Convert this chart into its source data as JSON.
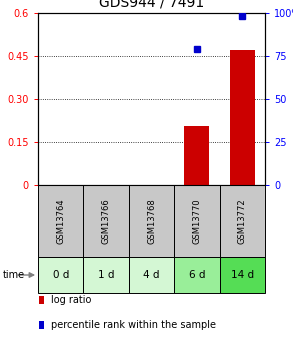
{
  "title": "GDS944 / 7491",
  "samples": [
    "GSM13764",
    "GSM13766",
    "GSM13768",
    "GSM13770",
    "GSM13772"
  ],
  "time_labels": [
    "0 d",
    "1 d",
    "4 d",
    "6 d",
    "14 d"
  ],
  "log_ratio": [
    0.0,
    0.0,
    0.0,
    0.205,
    0.47
  ],
  "percentile_rank": [
    0.0,
    0.0,
    0.0,
    79.0,
    98.5
  ],
  "ylim_left": [
    0,
    0.6
  ],
  "ylim_right": [
    0,
    100
  ],
  "yticks_left": [
    0,
    0.15,
    0.3,
    0.45,
    0.6
  ],
  "ytick_labels_left": [
    "0",
    "0.15",
    "0.30",
    "0.45",
    "0.6"
  ],
  "yticks_right": [
    0,
    25,
    50,
    75,
    100
  ],
  "ytick_labels_right": [
    "0",
    "25",
    "50",
    "75",
    "100%"
  ],
  "bar_color": "#cc0000",
  "dot_color": "#0000cc",
  "sample_box_color": "#c8c8c8",
  "time_box_colors": [
    "#d4f7d4",
    "#d4f7d4",
    "#d4f7d4",
    "#99ee99",
    "#55dd55"
  ],
  "legend_labels": [
    "log ratio",
    "percentile rank within the sample"
  ],
  "legend_colors": [
    "#cc0000",
    "#0000cc"
  ]
}
